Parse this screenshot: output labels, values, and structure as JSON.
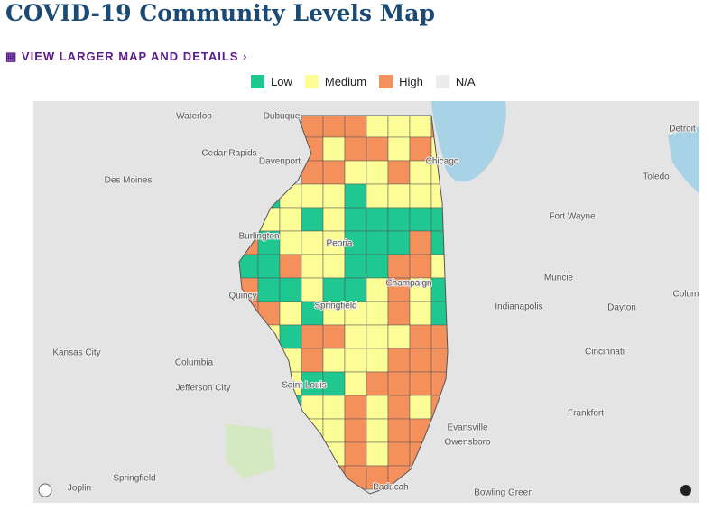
{
  "header": {
    "title": "COVID-19 Community Levels Map",
    "link": "VIEW LARGER MAP AND DETAILS"
  },
  "legend": {
    "items": [
      "Low",
      "Medium",
      "High",
      "N/A"
    ]
  },
  "map": {
    "cities": [
      "Waterloo",
      "Dubuque",
      "Cedar Rapids",
      "Des Moines",
      "Davenport",
      "Chicago",
      "Detroit",
      "Toledo",
      "Fort Wayne",
      "Burlington",
      "Peoria",
      "Muncie",
      "Champaign",
      "Quincy",
      "Springfield",
      "Indianapolis",
      "Dayton",
      "Columbus",
      "Kansas City",
      "Columbia",
      "Cincinnati",
      "Jefferson City",
      "Saint Louis",
      "Frankfort",
      "Evansville",
      "Owensboro",
      "Springfield",
      "Joplin",
      "Paducah",
      "Bowling Green"
    ]
  }
}
